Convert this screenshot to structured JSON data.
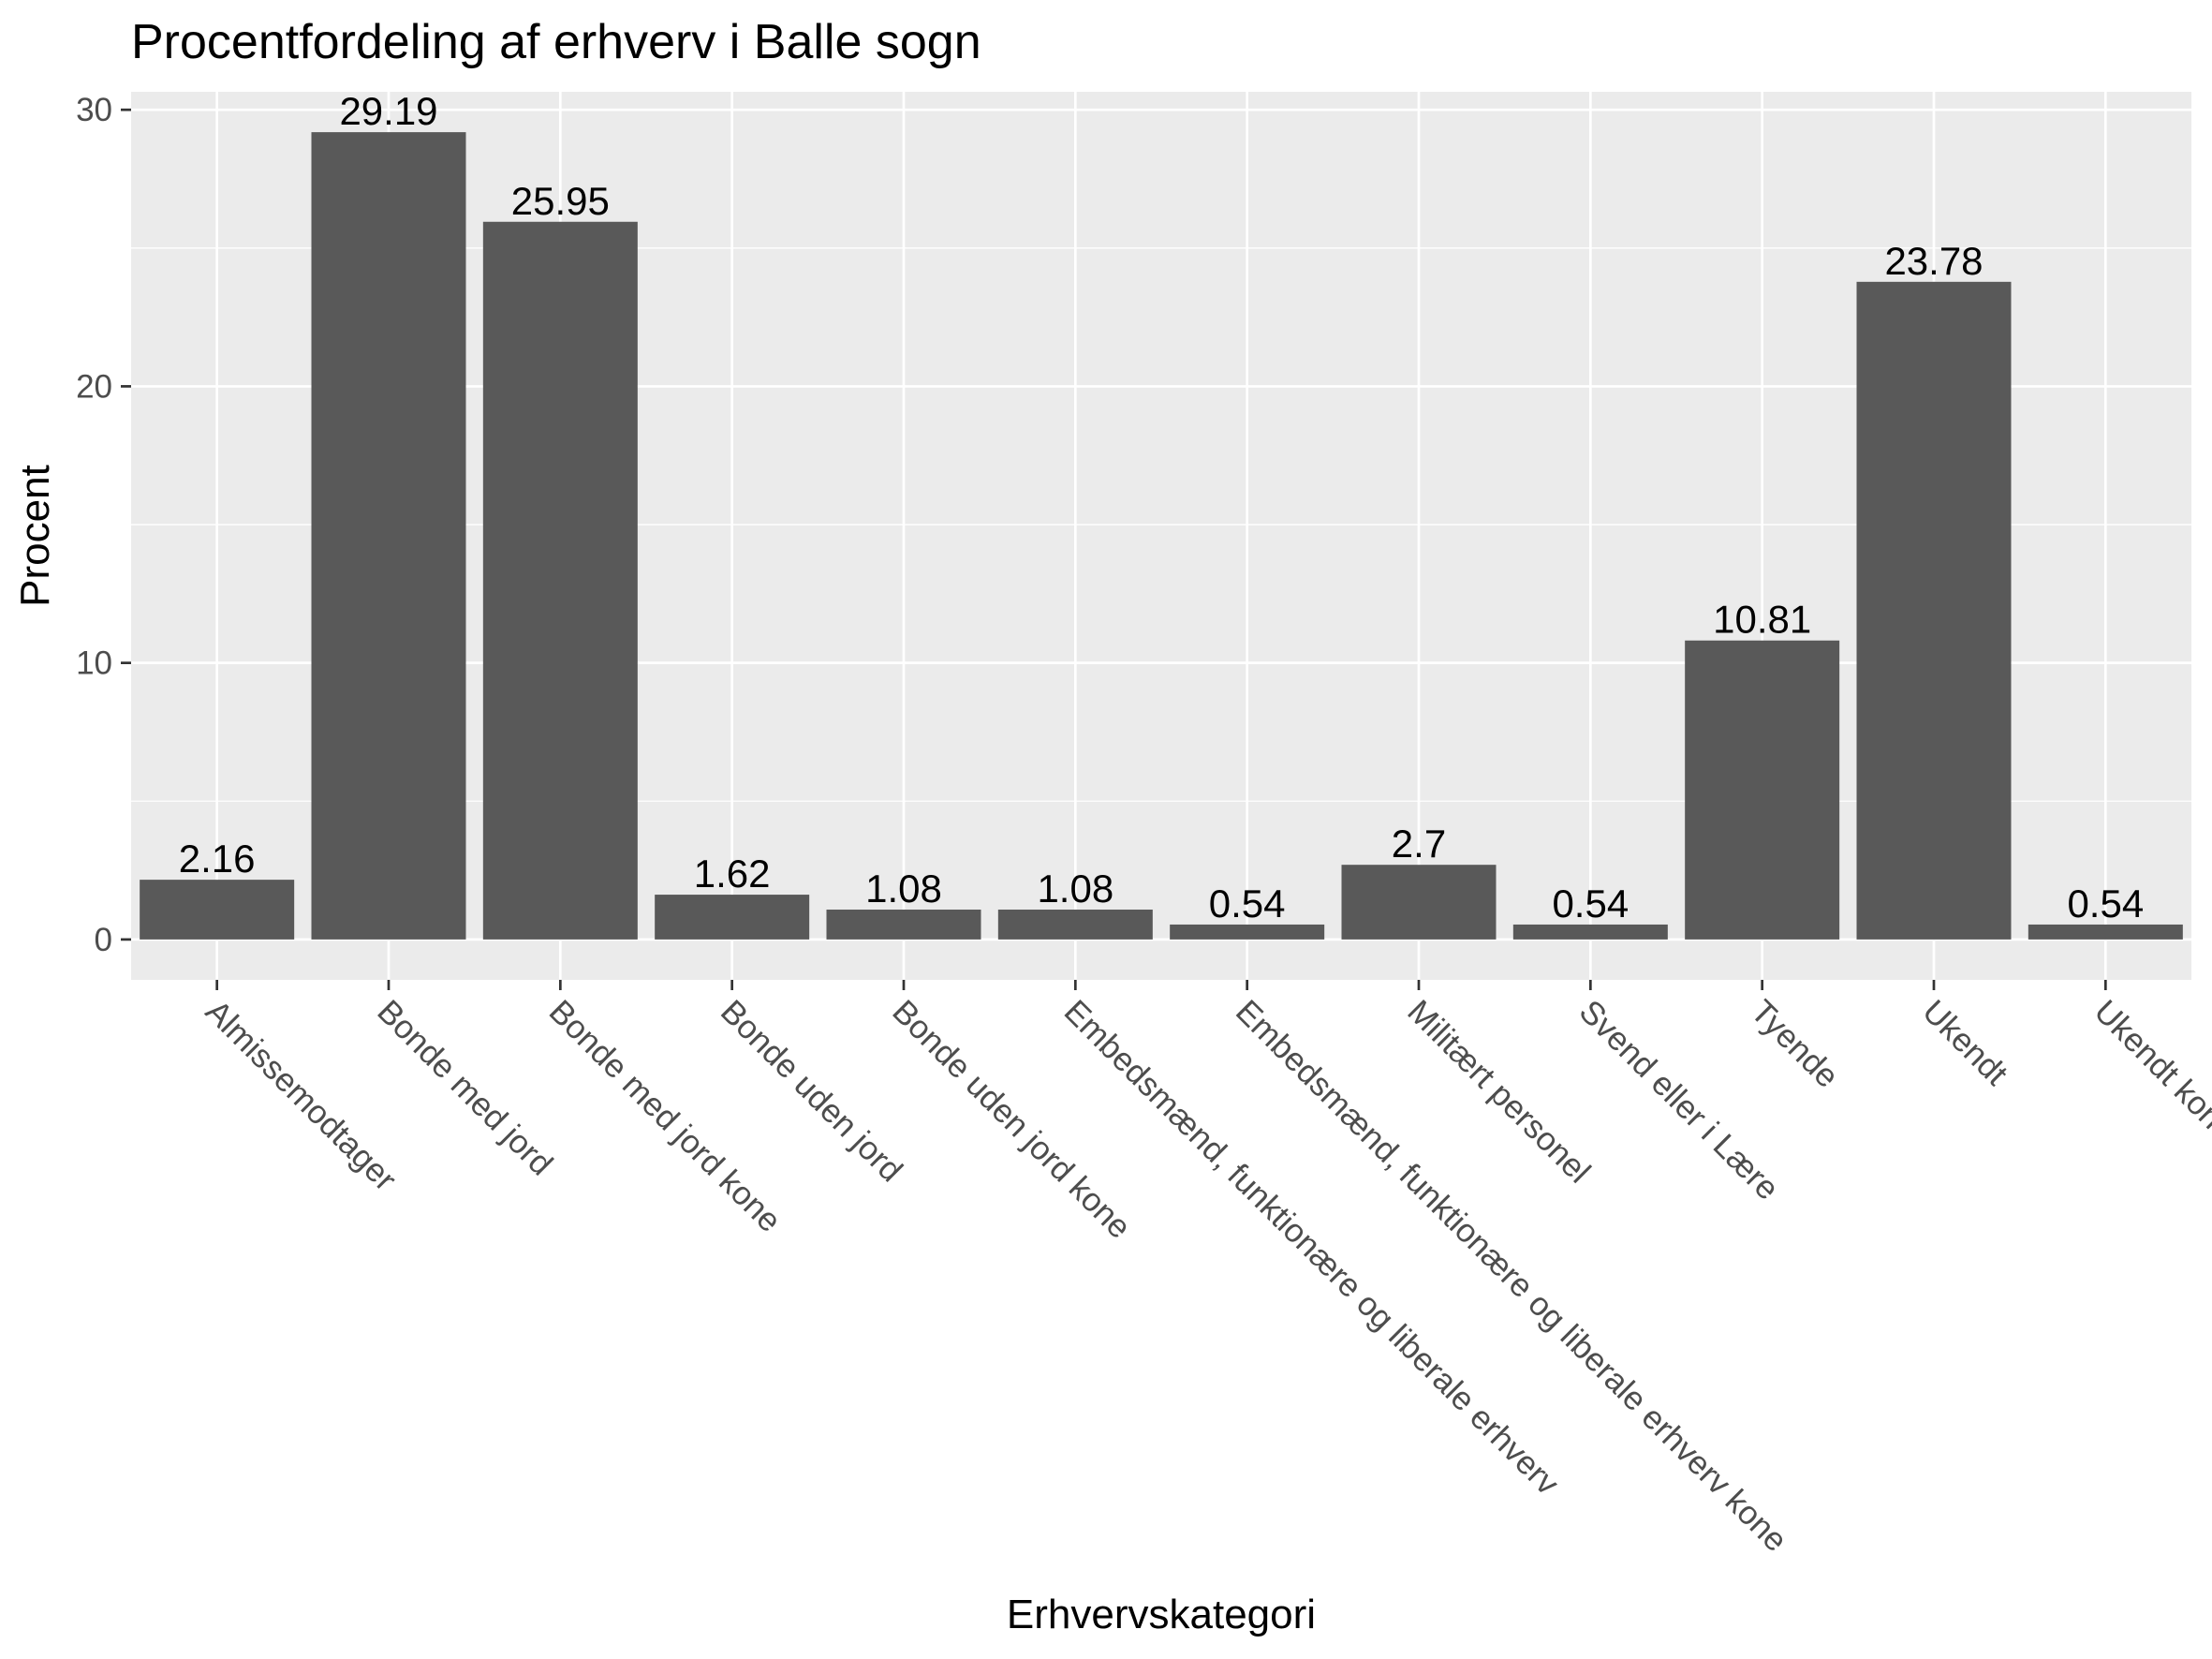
{
  "chart_data": {
    "type": "bar",
    "title": "Procentfordeling af erhverv i Balle sogn",
    "xlabel": "Erhvervskategori",
    "ylabel": "Procent",
    "categories": [
      "Almissemodtager",
      "Bonde med jord",
      "Bonde med jord kone",
      "Bonde uden jord",
      "Bonde uden jord kone",
      "Embedsmænd, funktionære og liberale erhverv",
      "Embedsmænd, funktionære og liberale erhverv kone",
      "Militært personel",
      "Svend eller i Lære",
      "Tyende",
      "Ukendt",
      "Ukendt kone"
    ],
    "values": [
      2.16,
      29.19,
      25.95,
      1.62,
      1.08,
      1.08,
      0.54,
      2.7,
      0.54,
      10.81,
      23.78,
      0.54
    ],
    "value_labels": [
      "2.16",
      "29.19",
      "25.95",
      "1.62",
      "1.08",
      "1.08",
      "0.54",
      "2.7",
      "0.54",
      "10.81",
      "23.78",
      "0.54"
    ],
    "yticks": [
      0,
      10,
      20,
      30
    ],
    "ylim": [
      -1.46,
      30.65
    ],
    "grid": true,
    "legend": "none",
    "colors": {
      "panel": "#ebebeb",
      "grid": "#ffffff",
      "bar": "#595959",
      "tick": "#333333"
    }
  }
}
